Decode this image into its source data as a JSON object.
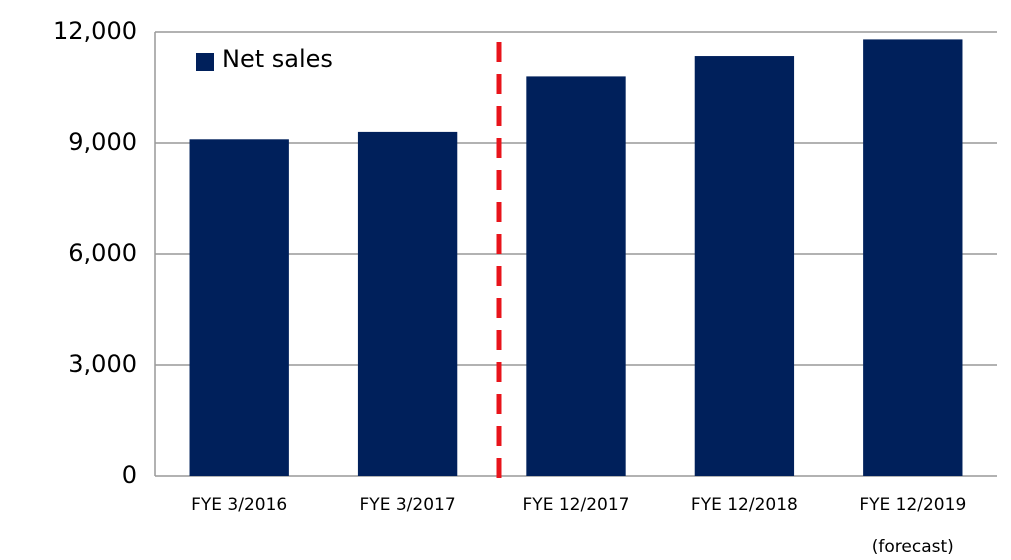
{
  "chart_data": {
    "type": "bar",
    "categories": [
      "FYE 3/2016",
      "FYE 3/2017",
      "FYE 12/2017",
      "FYE 12/2018",
      "FYE 12/2019"
    ],
    "annotation": "(forecast)",
    "series": [
      {
        "name": "Net sales",
        "color": "#00205b",
        "values": [
          9100,
          9300,
          10800,
          11350,
          11800
        ]
      }
    ],
    "ylim": [
      0,
      12000
    ],
    "yticks": [
      0,
      {
        "value": 3000,
        "label": "3,000"
      },
      {
        "value": 6000,
        "label": "6,000"
      },
      {
        "value": 9000,
        "label": "9,000"
      },
      {
        "value": 12000,
        "label": "12,000"
      }
    ],
    "grid": true,
    "legend": "top-left"
  }
}
